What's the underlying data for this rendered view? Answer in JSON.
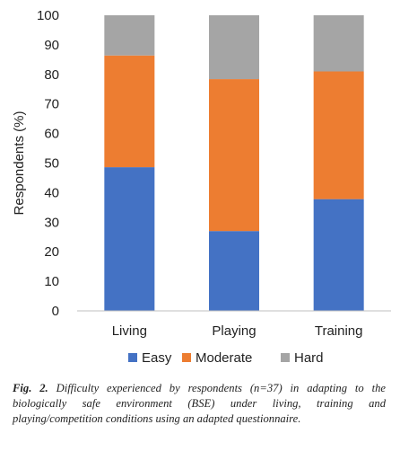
{
  "chart_data": {
    "type": "bar",
    "stacked": true,
    "categories": [
      "Living",
      "Playing",
      "Training"
    ],
    "series": [
      {
        "name": "Easy",
        "values": [
          48.6,
          27.0,
          37.8
        ],
        "color": "#4472C4"
      },
      {
        "name": "Moderate",
        "values": [
          37.8,
          51.4,
          43.2
        ],
        "color": "#ED7D31"
      },
      {
        "name": "Hard",
        "values": [
          13.6,
          21.6,
          19.0
        ],
        "color": "#A5A5A5"
      }
    ],
    "ylabel": "Respondents (%)",
    "xlabel": "",
    "ylim": [
      0,
      100
    ],
    "yticks": [
      "0",
      "10",
      "20",
      "30",
      "40",
      "50",
      "60",
      "70",
      "80",
      "90",
      "100"
    ],
    "grid": false,
    "legend_position": "bottom"
  },
  "caption": {
    "label": "Fig. 2.",
    "text": "Difficulty experienced by respondents (n=37) in adapting to the biologically safe environment (BSE) under living, training and playing/competition conditions using an adapted questionnaire."
  }
}
